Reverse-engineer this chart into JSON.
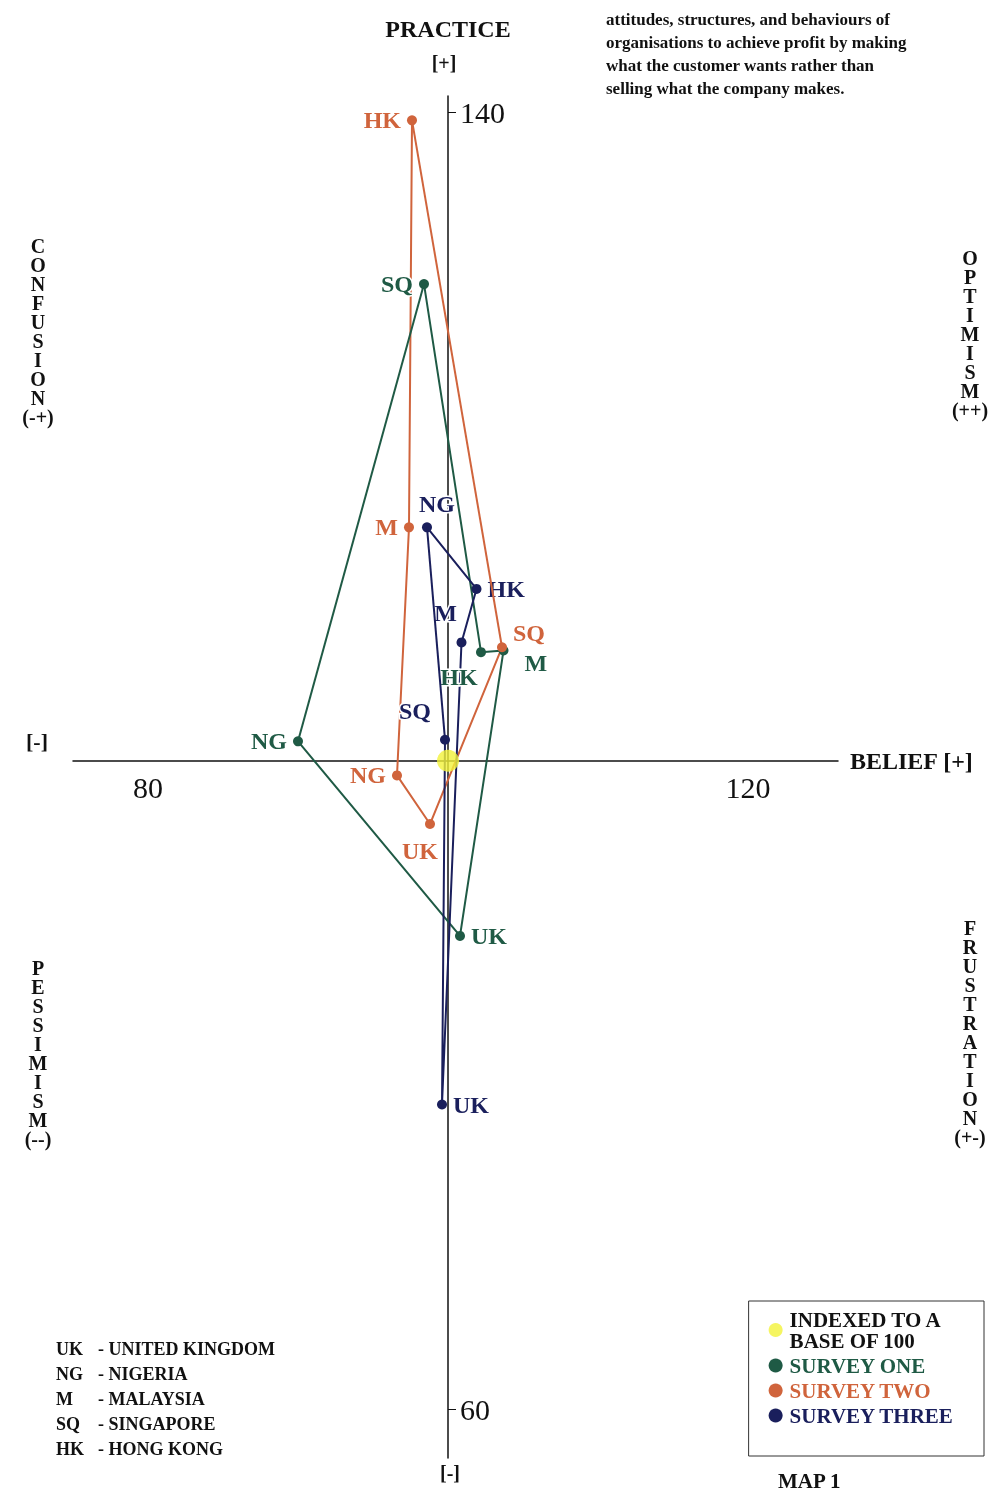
{
  "chart_data": {
    "type": "line",
    "xlabel": "BELIEF [+]",
    "ylabel": "PRACTICE",
    "xlim": [
      75,
      126
    ],
    "ylim": [
      57,
      141
    ],
    "xticks": [
      80,
      120
    ],
    "yticks": [
      140,
      60
    ],
    "marker": "circle",
    "line_style": "solid",
    "legend": "bottom right",
    "grid": false,
    "series": [
      {
        "name": "INDEXED TO A BASE OF 100",
        "type": "scatter",
        "color": "#f2f23a",
        "x": [
          100
        ],
        "values": [
          100
        ]
      },
      {
        "name": "SURVEY ONE",
        "color": "#1f5a45",
        "x": [
          98.4,
          102.2,
          103.7,
          100.8,
          90.0
        ],
        "values": [
          129.4,
          106.7,
          106.8,
          89.2,
          101.2
        ]
      },
      {
        "name": "SURVEY TWO",
        "color": "#d0643c",
        "x": [
          97.6,
          97.4,
          96.6,
          98.8,
          103.6
        ],
        "values": [
          139.5,
          114.4,
          99.1,
          96.1,
          107.0
        ]
      },
      {
        "name": "SURVEY THREE",
        "color": "#1a1f5c",
        "x": [
          98.6,
          101.9,
          100.9,
          99.6,
          99.8
        ],
        "values": [
          114.4,
          110.6,
          107.3,
          78.8,
          101.3
        ]
      }
    ],
    "annotations": [
      "attitudes, structures, and behaviours of organisations to achieve profit by making what the customer wants rather than selling what the company makes.",
      "[+]",
      "[-]",
      "[-]",
      "CONFUSION (-+)",
      "OPTIMISM (++)",
      "PESSIMISM (--)",
      "FRUSTRATION (+-)",
      "UK - UNITED KINGDOM",
      "NG - NIGERIA",
      "M - MALAYSIA",
      "SQ - SINGAPORE",
      "HK - HONG KONG",
      "MAP 1",
      {
        "text": "SQ",
        "x": 98.4,
        "y": 129.4
      },
      {
        "text": "HK",
        "x": 102.2,
        "y": 106.7
      },
      {
        "text": "M",
        "x": 103.7,
        "y": 106.8
      },
      {
        "text": "UK",
        "x": 100.8,
        "y": 89.2
      },
      {
        "text": "NG",
        "x": 90.0,
        "y": 101.2
      },
      {
        "text": "HK",
        "x": 97.6,
        "y": 139.5
      },
      {
        "text": "M",
        "x": 97.4,
        "y": 114.4
      },
      {
        "text": "NG",
        "x": 96.6,
        "y": 99.1
      },
      {
        "text": "UK",
        "x": 98.8,
        "y": 96.1
      },
      {
        "text": "SQ",
        "x": 103.6,
        "y": 107.0
      },
      {
        "text": "NG",
        "x": 98.6,
        "y": 114.4
      },
      {
        "text": "HK",
        "x": 101.9,
        "y": 110.6
      },
      {
        "text": "M",
        "x": 100.9,
        "y": 107.3
      },
      {
        "text": "UK",
        "x": 99.6,
        "y": 78.8
      },
      {
        "text": "SQ",
        "x": 99.8,
        "y": 101.3
      }
    ]
  }
}
